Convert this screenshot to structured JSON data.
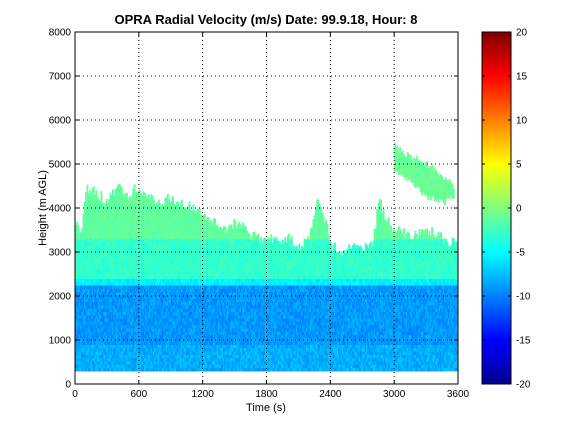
{
  "chart_data": {
    "type": "heatmap",
    "title": "OPRA Radial Velocity (m/s)  Date: 99.9.18, Hour: 8",
    "xlabel": "Time (s)",
    "ylabel": "Height (m AGL)",
    "xlim": [
      0,
      3600
    ],
    "ylim": [
      0,
      8000
    ],
    "x_ticks": [
      "0",
      "600",
      "1200",
      "1800",
      "2400",
      "3000",
      "3600"
    ],
    "y_ticks": [
      "0",
      "1000",
      "2000",
      "3000",
      "4000",
      "5000",
      "6000",
      "7000",
      "8000"
    ],
    "grid": true,
    "grid_style": "dotted",
    "colorbar": {
      "range": [
        -20,
        20
      ],
      "ticks": [
        "20",
        "15",
        "10",
        "5",
        "0",
        "-5",
        "-10",
        "-15",
        "-20"
      ],
      "colormap": "jet"
    },
    "layers": [
      {
        "height_range": [
          300,
          2200
        ],
        "velocity": -9,
        "note_color": "#2aa6f0"
      },
      {
        "height_range": [
          2200,
          3300
        ],
        "velocity": -3,
        "note_color": "#5ff0c0"
      },
      {
        "height_range": [
          3300,
          4500
        ],
        "velocity": -1,
        "note_color": "#78f59a"
      }
    ],
    "echo_top": [
      [
        0,
        3600
      ],
      [
        60,
        3550
      ],
      [
        100,
        4500
      ],
      [
        200,
        4300
      ],
      [
        300,
        4200
      ],
      [
        420,
        4450
      ],
      [
        500,
        4300
      ],
      [
        560,
        4500
      ],
      [
        640,
        4300
      ],
      [
        720,
        4200
      ],
      [
        800,
        4100
      ],
      [
        900,
        4250
      ],
      [
        1000,
        4050
      ],
      [
        1100,
        4000
      ],
      [
        1200,
        3900
      ],
      [
        1300,
        3700
      ],
      [
        1400,
        3500
      ],
      [
        1500,
        3650
      ],
      [
        1600,
        3500
      ],
      [
        1700,
        3300
      ],
      [
        1800,
        3350
      ],
      [
        1900,
        3200
      ],
      [
        2000,
        3300
      ],
      [
        2100,
        3100
      ],
      [
        2200,
        3300
      ],
      [
        2260,
        4200
      ],
      [
        2320,
        3900
      ],
      [
        2400,
        3200
      ],
      [
        2500,
        3000
      ],
      [
        2600,
        3100
      ],
      [
        2700,
        3150
      ],
      [
        2800,
        3300
      ],
      [
        2850,
        4200
      ],
      [
        2900,
        3800
      ],
      [
        3000,
        3500
      ],
      [
        3100,
        3400
      ],
      [
        3200,
        3400
      ],
      [
        3300,
        3500
      ],
      [
        3400,
        3400
      ],
      [
        3500,
        3200
      ],
      [
        3600,
        3200
      ]
    ],
    "elevated_layer": [
      {
        "x_range": [
          3000,
          3560
        ],
        "top": [
          5400,
          5200,
          5100,
          5000,
          4900,
          4700,
          4500
        ],
        "bottom": [
          4900,
          4700,
          4500,
          4300,
          4200,
          4150,
          4300
        ]
      }
    ]
  }
}
